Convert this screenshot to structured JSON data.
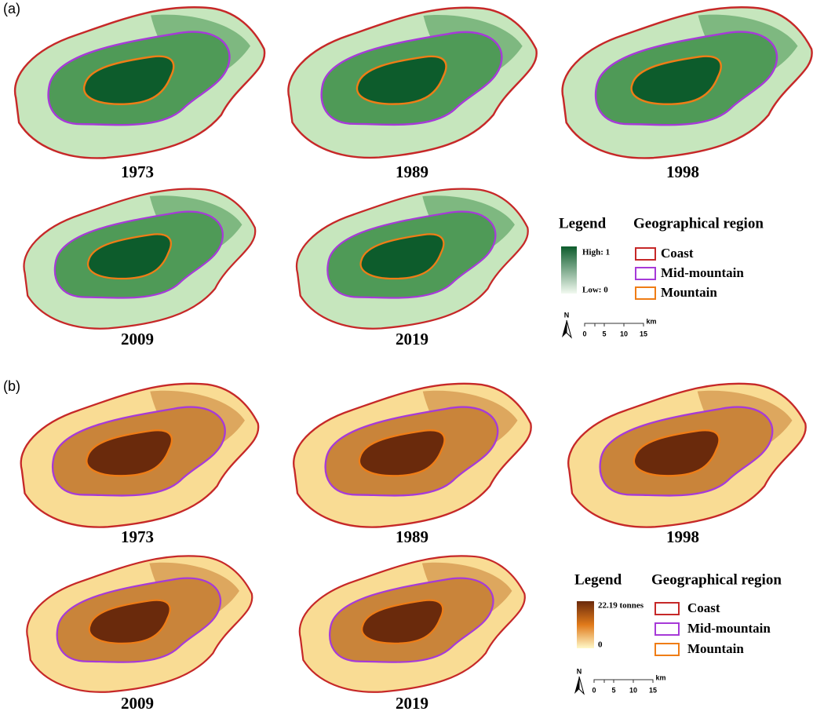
{
  "panels": [
    {
      "label": "(a)",
      "maps": [
        {
          "year": "1973"
        },
        {
          "year": "1989"
        },
        {
          "year": "1998"
        },
        {
          "year": "2009"
        },
        {
          "year": "2019"
        }
      ],
      "legend": {
        "title": "Legend",
        "high": "High: 1",
        "low": "Low: 0"
      },
      "region_legend": {
        "title": "Geographical region",
        "items": [
          "Coast",
          "Mid-mountain",
          "Mountain"
        ]
      },
      "scale": {
        "north": "N",
        "ticks": [
          0,
          5,
          10,
          15
        ],
        "unit": "km"
      }
    },
    {
      "label": "(b)",
      "maps": [
        {
          "year": "1973"
        },
        {
          "year": "1989"
        },
        {
          "year": "1998"
        },
        {
          "year": "2009"
        },
        {
          "year": "2019"
        }
      ],
      "legend": {
        "title": "Legend",
        "high": "22.19 tonnes",
        "low": "0"
      },
      "region_legend": {
        "title": "Geographical region",
        "items": [
          "Coast",
          "Mid-mountain",
          "Mountain"
        ]
      },
      "scale": {
        "north": "N",
        "ticks": [
          0,
          5,
          10,
          15
        ],
        "unit": "km"
      }
    }
  ]
}
